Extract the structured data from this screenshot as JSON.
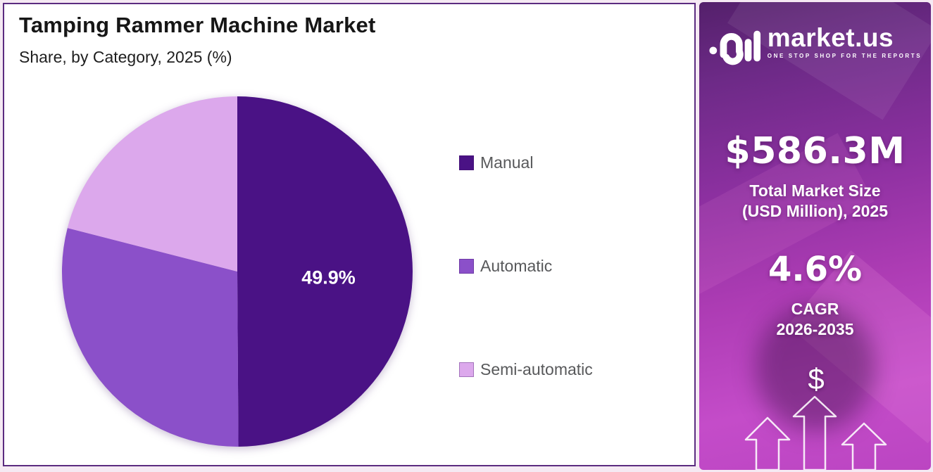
{
  "header": {
    "title": "Tamping Rammer Machine Market",
    "subtitle": "Share, by Category, 2025 (%)"
  },
  "chart_data": {
    "type": "pie",
    "title": "Tamping Rammer Machine Market",
    "subtitle": "Share, by Category, 2025 (%)",
    "categories": [
      "Manual",
      "Automatic",
      "Semi-automatic"
    ],
    "values": [
      49.9,
      29.1,
      21.0
    ],
    "colors": [
      "#4a1285",
      "#8b50c9",
      "#dca8ec"
    ],
    "slice_labels": [
      "49.9%",
      null,
      null
    ],
    "start_angle_deg": -90,
    "direction": "clockwise",
    "legend_position": "right",
    "label_radius_frac": 0.52
  },
  "sidebar": {
    "brand": {
      "name": "market.us",
      "tagline": "ONE STOP SHOP FOR THE REPORTS"
    },
    "market_size": {
      "value": "$586.3M",
      "caption_line1": "Total Market Size",
      "caption_line2": "(USD Million), 2025"
    },
    "cagr": {
      "value": "4.6%",
      "label": "CAGR",
      "period": "2026-2035"
    },
    "dollar_symbol": "$"
  },
  "colors": {
    "panel_border": "#5b2b80",
    "panel_gradient_top": "#54206b",
    "panel_gradient_bottom": "#c44cc9",
    "legend_text": "#58595b",
    "slice_label_text": "#ffffff",
    "page_background": "#f5e9f3"
  }
}
